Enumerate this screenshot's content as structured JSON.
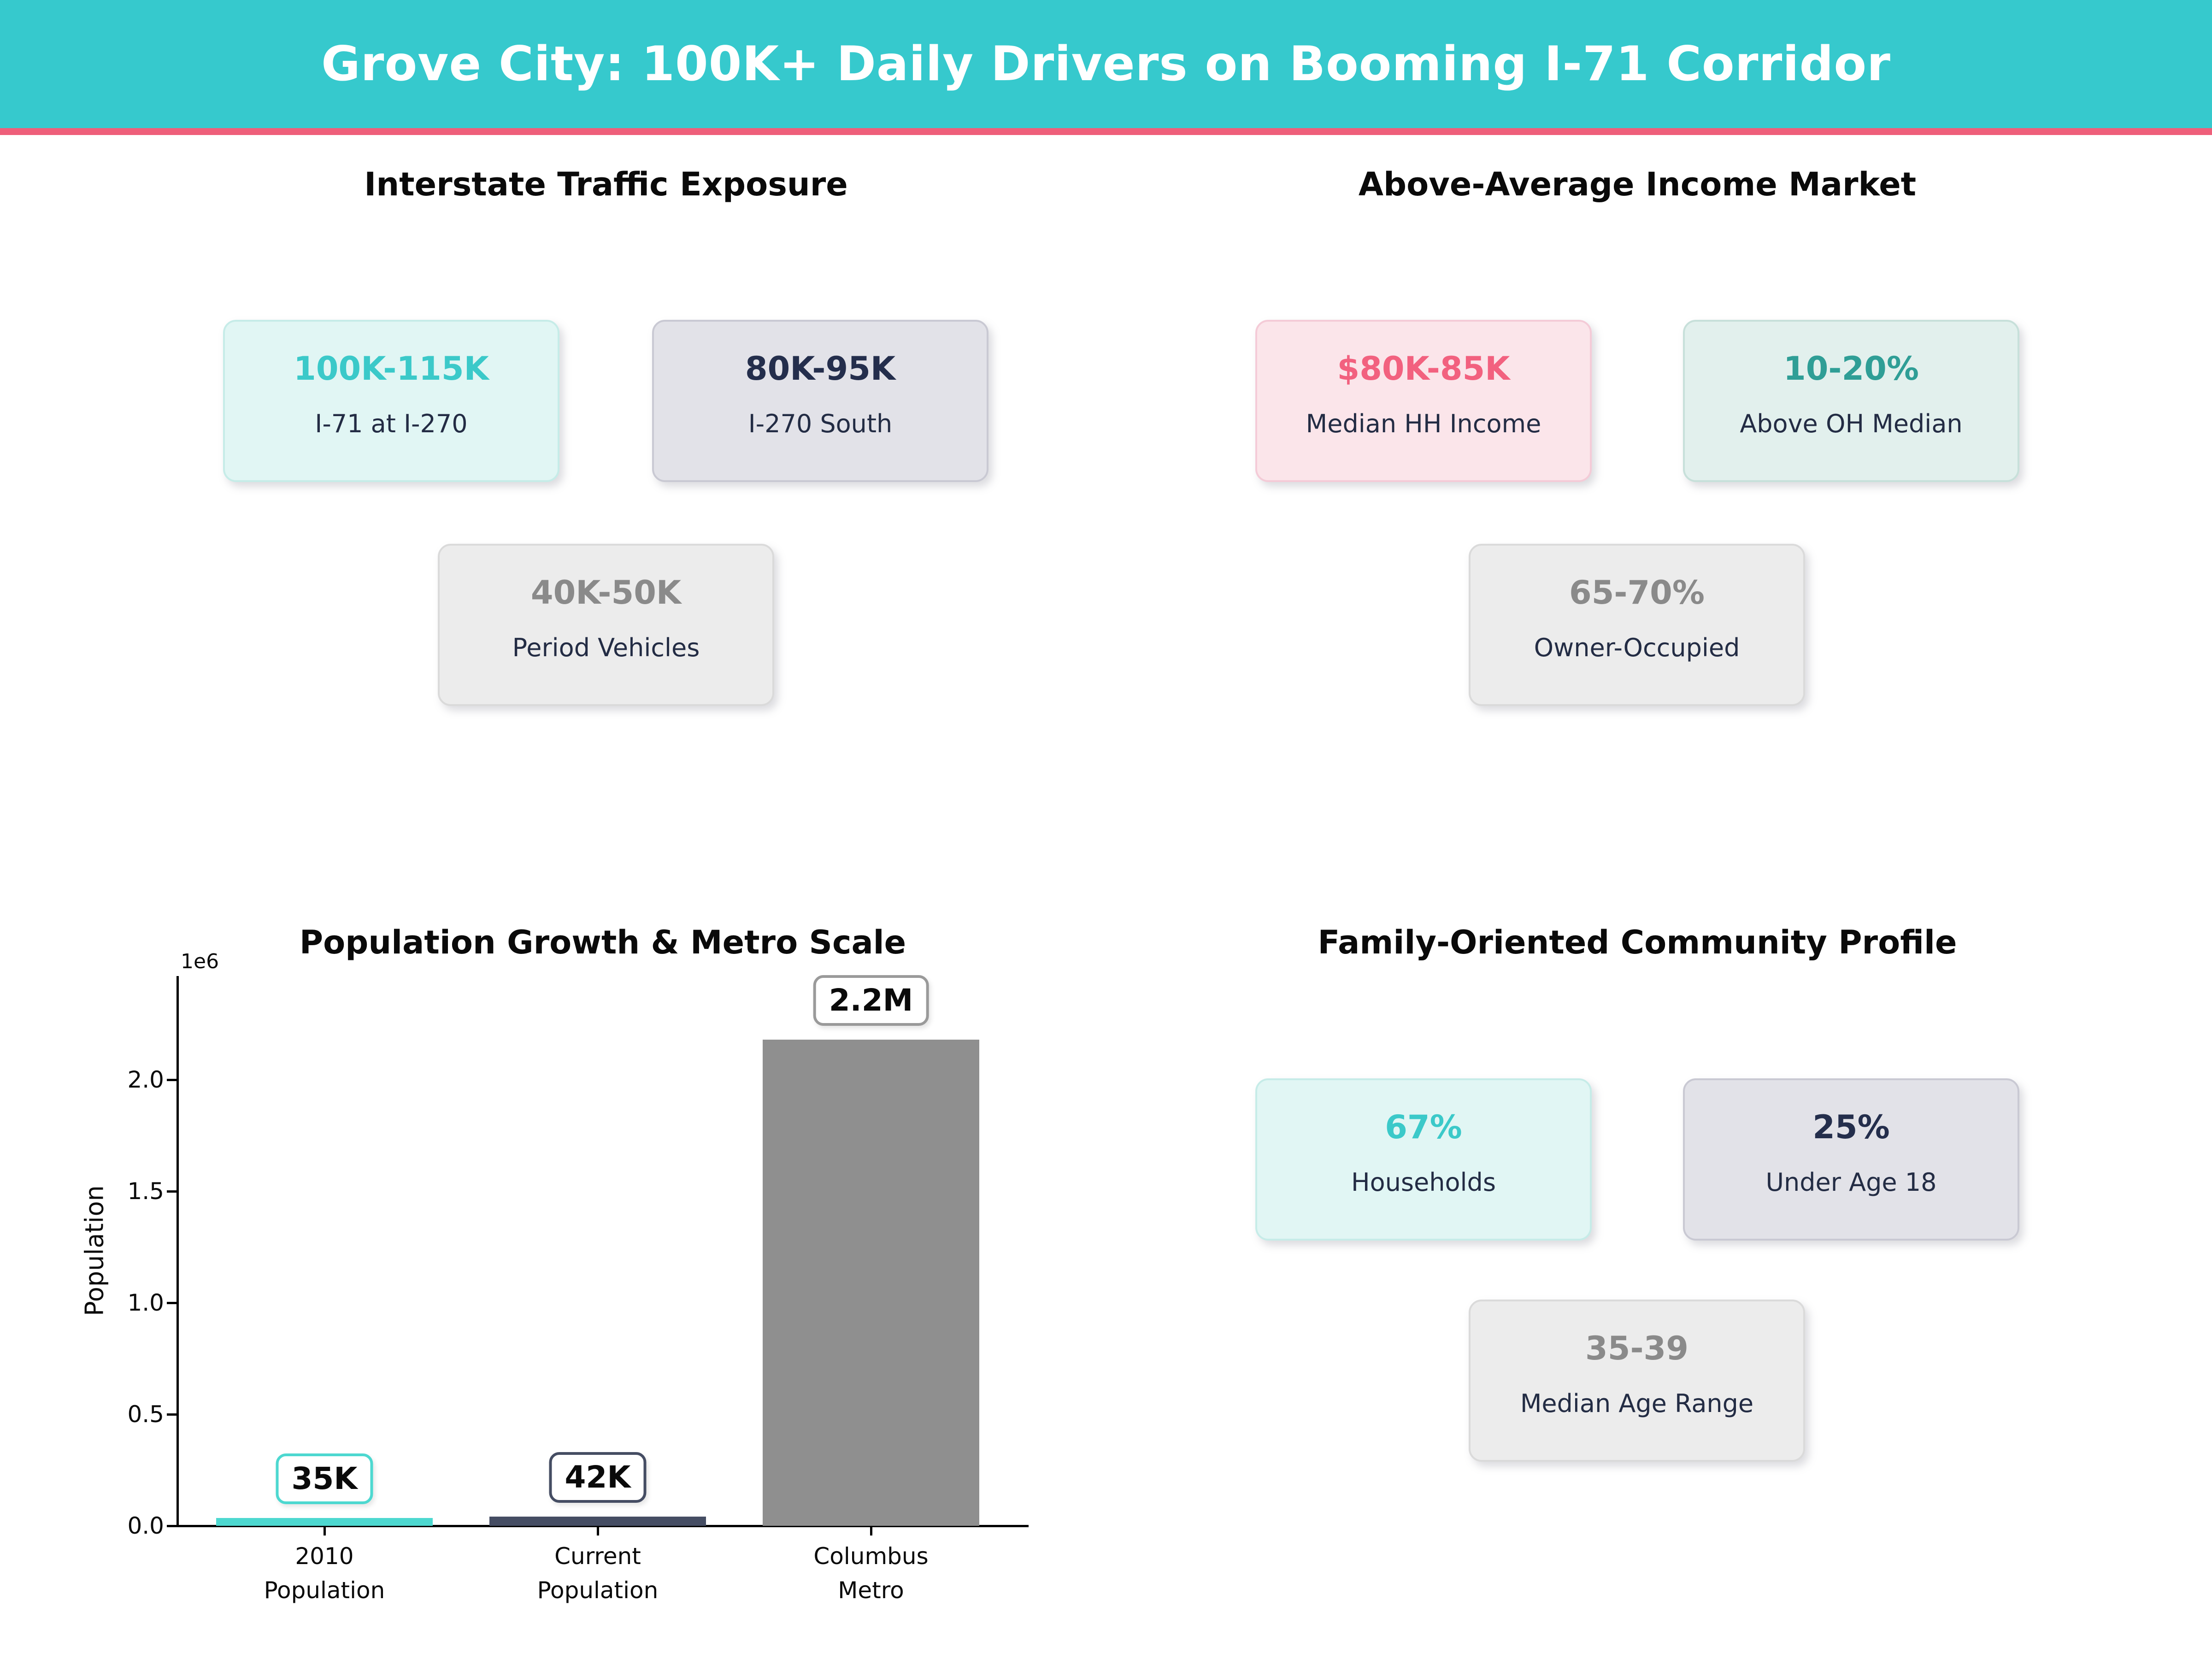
{
  "header": {
    "title": "Grove City: 100K+ Daily Drivers on Booming I-71 Corridor",
    "bg_color": "#36C9CD",
    "underline_color": "#EE5F7A"
  },
  "palette": {
    "mint_card_bg": "#E1F6F4",
    "turquoise_value": "#3BC9C9",
    "lavender_card_bg": "#E2E2E8",
    "navy_value": "#242E4C",
    "gray_card_bg": "#ECECEC",
    "gray_value": "#8A8A8A",
    "pink_card_bg": "#FBE5EA",
    "pink_value": "#F2617F",
    "teal_card_bg": "#E2F0ED",
    "teal_value": "#2F9E96",
    "label_navy": "#232C44"
  },
  "quadrants": {
    "traffic": {
      "title": "Interstate Traffic Exposure",
      "cards": [
        {
          "value": "100K-115K",
          "label": "I-71 at I-270"
        },
        {
          "value": "80K-95K",
          "label": "I-270 South"
        },
        {
          "value": "40K-50K",
          "label": "Period Vehicles"
        }
      ]
    },
    "income": {
      "title": "Above-Average Income Market",
      "cards": [
        {
          "value": "$80K-85K",
          "label": "Median HH Income"
        },
        {
          "value": "10-20%",
          "label": "Above OH Median"
        },
        {
          "value": "65-70%",
          "label": "Owner-Occupied"
        }
      ]
    },
    "community": {
      "title": "Family-Oriented Community Profile",
      "cards": [
        {
          "value": "67%",
          "label": "Households"
        },
        {
          "value": "25%",
          "label": "Under Age 18"
        },
        {
          "value": "35-39",
          "label": "Median Age Range"
        }
      ]
    }
  },
  "chart_data": {
    "type": "bar",
    "title": "Population Growth & Metro Scale",
    "categories": [
      "2010\nPopulation",
      "Current\nPopulation",
      "Columbus\nMetro"
    ],
    "values": [
      35000,
      42000,
      2180000
    ],
    "value_labels": [
      "35K",
      "42K",
      "2.2M"
    ],
    "bar_colors": [
      "#4DD8D0",
      "#454D63",
      "#8F8F8F"
    ],
    "badge_border_colors": [
      "#4DD8D0",
      "#454D63",
      "#9A9A9A"
    ],
    "xlabel": "",
    "ylabel": "Population",
    "offset_text": "1e6",
    "yticks": [
      0.0,
      0.5,
      1.0,
      1.5,
      2.0
    ],
    "ytick_labels": [
      "0.0",
      "0.5",
      "1.0",
      "1.5",
      "2.0"
    ],
    "ylim": [
      0,
      2460000
    ],
    "grid": false,
    "legend": false
  }
}
